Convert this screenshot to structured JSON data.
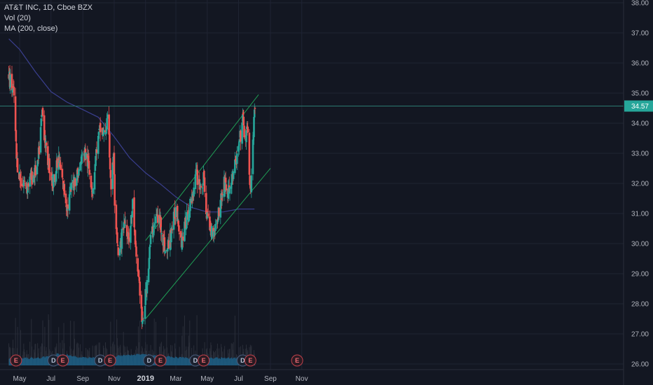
{
  "legend": {
    "symbol": "AT&T INC, 1D, Cboe BZX",
    "volume": "Vol (20)",
    "ma": "MA (200, close)"
  },
  "colors": {
    "background": "#131722",
    "grid": "#1f2433",
    "up": "#26a69a",
    "down": "#ef5350",
    "ma": "#3a3f8f",
    "channel": "#1f9d55",
    "resistance": "#2b7a70",
    "price_label": "#26a69a",
    "volume": "#1c5f86"
  },
  "chart_data": {
    "type": "candlestick",
    "ylim": [
      26.0,
      38.0
    ],
    "yticks": [
      "26.00",
      "27.00",
      "28.00",
      "29.00",
      "30.00",
      "31.00",
      "32.00",
      "33.00",
      "34.00",
      "35.00",
      "36.00",
      "37.00",
      "38.00"
    ],
    "xticks": [
      {
        "label": "May",
        "date": "2018-05-01",
        "bold": false
      },
      {
        "label": "Jul",
        "date": "2018-07-01",
        "bold": false
      },
      {
        "label": "Sep",
        "date": "2018-09-01",
        "bold": false
      },
      {
        "label": "Nov",
        "date": "2018-11-01",
        "bold": false
      },
      {
        "label": "2019",
        "date": "2019-01-01",
        "bold": true
      },
      {
        "label": "Mar",
        "date": "2019-03-01",
        "bold": false
      },
      {
        "label": "May",
        "date": "2019-05-01",
        "bold": false
      },
      {
        "label": "Jul",
        "date": "2019-07-01",
        "bold": false
      },
      {
        "label": "Sep",
        "date": "2019-09-01",
        "bold": false
      },
      {
        "label": "Nov",
        "date": "2019-11-01",
        "bold": false
      }
    ],
    "last_price": "34.57",
    "close_path": [
      [
        "2018-04-10",
        35.6
      ],
      [
        "2018-04-20",
        34.9
      ],
      [
        "2018-04-25",
        32.8
      ],
      [
        "2018-05-03",
        32.1
      ],
      [
        "2018-05-15",
        31.9
      ],
      [
        "2018-05-28",
        32.3
      ],
      [
        "2018-06-05",
        32.5
      ],
      [
        "2018-06-14",
        34.4
      ],
      [
        "2018-06-22",
        33.0
      ],
      [
        "2018-07-05",
        32.0
      ],
      [
        "2018-07-16",
        32.8
      ],
      [
        "2018-07-25",
        31.9
      ],
      [
        "2018-08-02",
        31.2
      ],
      [
        "2018-08-12",
        32.0
      ],
      [
        "2018-08-24",
        32.4
      ],
      [
        "2018-09-03",
        33.1
      ],
      [
        "2018-09-12",
        32.6
      ],
      [
        "2018-09-20",
        31.8
      ],
      [
        "2018-09-28",
        33.2
      ],
      [
        "2018-10-05",
        33.8
      ],
      [
        "2018-10-12",
        33.6
      ],
      [
        "2018-10-20",
        34.1
      ],
      [
        "2018-10-26",
        31.9
      ],
      [
        "2018-10-31",
        32.9
      ],
      [
        "2018-11-03",
        30.6
      ],
      [
        "2018-11-10",
        29.4
      ],
      [
        "2018-11-20",
        30.8
      ],
      [
        "2018-12-01",
        30.2
      ],
      [
        "2018-12-08",
        31.5
      ],
      [
        "2018-12-12",
        29.8
      ],
      [
        "2018-12-20",
        28.7
      ],
      [
        "2018-12-26",
        27.2
      ],
      [
        "2019-01-03",
        28.6
      ],
      [
        "2019-01-12",
        30.3
      ],
      [
        "2019-01-22",
        30.9
      ],
      [
        "2019-01-30",
        30.7
      ],
      [
        "2019-02-10",
        29.6
      ],
      [
        "2019-02-20",
        30.4
      ],
      [
        "2019-03-02",
        31.2
      ],
      [
        "2019-03-12",
        30.1
      ],
      [
        "2019-03-22",
        30.8
      ],
      [
        "2019-04-01",
        31.5
      ],
      [
        "2019-04-10",
        32.3
      ],
      [
        "2019-04-18",
        31.9
      ],
      [
        "2019-04-24",
        32.1
      ],
      [
        "2019-04-30",
        31.0
      ],
      [
        "2019-05-08",
        30.4
      ],
      [
        "2019-05-18",
        30.6
      ],
      [
        "2019-05-28",
        31.5
      ],
      [
        "2019-06-05",
        32.1
      ],
      [
        "2019-06-10",
        31.6
      ],
      [
        "2019-06-20",
        32.3
      ],
      [
        "2019-06-30",
        33.0
      ],
      [
        "2019-07-05",
        33.6
      ],
      [
        "2019-07-09",
        34.2
      ],
      [
        "2019-07-14",
        33.4
      ],
      [
        "2019-07-19",
        33.8
      ],
      [
        "2019-07-23",
        32.0
      ],
      [
        "2019-07-25",
        31.7
      ],
      [
        "2019-07-28",
        33.1
      ],
      [
        "2019-08-02",
        34.57
      ]
    ],
    "ma200": [
      [
        "2018-04-10",
        36.8
      ],
      [
        "2018-05-01",
        36.45
      ],
      [
        "2018-06-01",
        35.7
      ],
      [
        "2018-07-01",
        35.05
      ],
      [
        "2018-08-01",
        34.7
      ],
      [
        "2018-09-01",
        34.45
      ],
      [
        "2018-10-01",
        34.2
      ],
      [
        "2018-11-01",
        33.55
      ],
      [
        "2018-12-01",
        32.85
      ],
      [
        "2019-01-01",
        32.35
      ],
      [
        "2019-02-01",
        31.95
      ],
      [
        "2019-03-01",
        31.55
      ],
      [
        "2019-04-01",
        31.2
      ],
      [
        "2019-05-01",
        31.05
      ],
      [
        "2019-06-01",
        31.05
      ],
      [
        "2019-07-01",
        31.15
      ],
      [
        "2019-08-01",
        31.15
      ]
    ],
    "channel_upper": [
      [
        "2019-01-01",
        30.1
      ],
      [
        "2019-08-09",
        34.95
      ]
    ],
    "channel_lower": [
      [
        "2019-01-01",
        27.5
      ],
      [
        "2019-09-01",
        32.5
      ]
    ],
    "resistance_level": 34.57,
    "events": [
      {
        "letter": "E",
        "date": "2018-04-24",
        "type": "earnings"
      },
      {
        "letter": "D",
        "date": "2018-07-06",
        "type": "dividend"
      },
      {
        "letter": "E",
        "date": "2018-07-24",
        "type": "earnings"
      },
      {
        "letter": "D",
        "date": "2018-10-05",
        "type": "dividend"
      },
      {
        "letter": "E",
        "date": "2018-10-24",
        "type": "earnings"
      },
      {
        "letter": "D",
        "date": "2019-01-08",
        "type": "dividend"
      },
      {
        "letter": "E",
        "date": "2019-01-30",
        "type": "earnings"
      },
      {
        "letter": "D",
        "date": "2019-04-08",
        "type": "dividend"
      },
      {
        "letter": "E",
        "date": "2019-04-24",
        "type": "earnings"
      },
      {
        "letter": "D",
        "date": "2019-07-09",
        "type": "dividend"
      },
      {
        "letter": "E",
        "date": "2019-07-24",
        "type": "earnings"
      },
      {
        "letter": "E",
        "date": "2019-10-23",
        "type": "earnings"
      }
    ]
  }
}
